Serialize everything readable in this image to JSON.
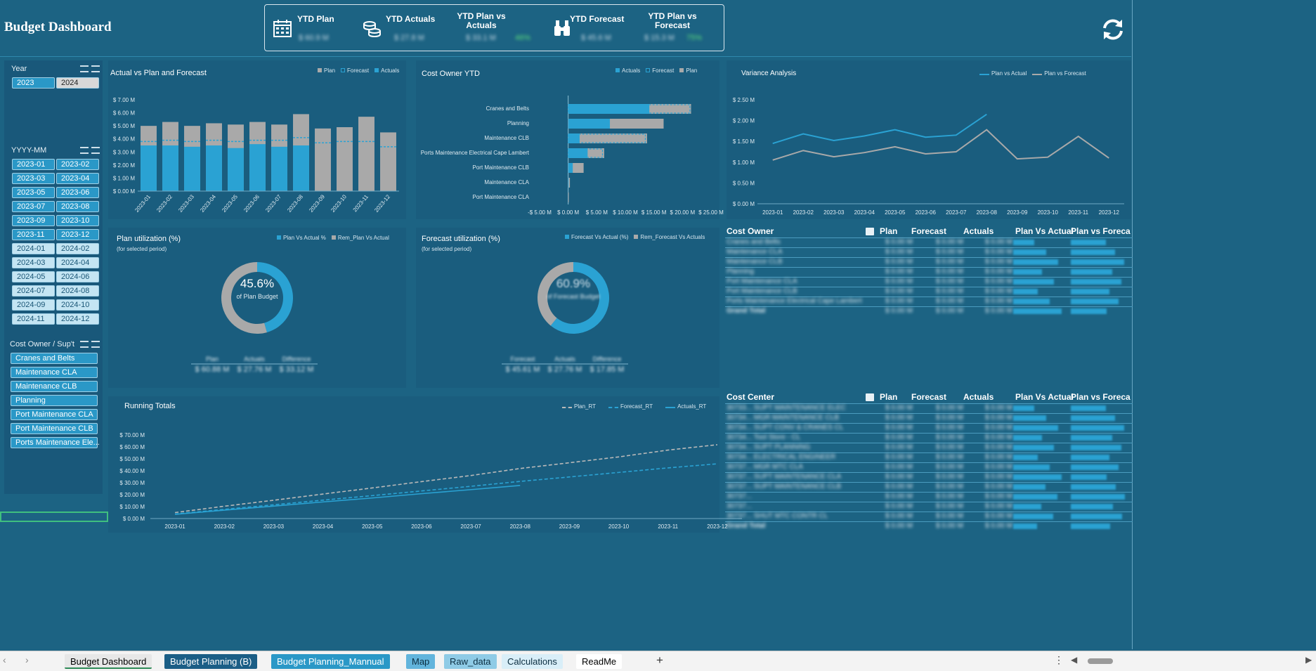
{
  "title": "Budget Dashboard",
  "kpis": [
    {
      "label": "YTD Plan",
      "value": "$ 60.9 M",
      "icon": "calendar-icon"
    },
    {
      "label": "YTD Actuals",
      "value": "$ 27.8 M",
      "icon": "coins-icon"
    },
    {
      "label": "YTD Plan vs Actuals",
      "value": "$ 33.1 M",
      "pct": "46%"
    },
    {
      "label": "YTD Forecast",
      "value": "$ 45.6 M",
      "icon": "binoculars-icon"
    },
    {
      "label": "YTD Plan vs Forecast",
      "value": "$ 15.3 M",
      "pct": "75%"
    }
  ],
  "slicers": {
    "year": {
      "label": "Year",
      "items": [
        "2023",
        "2024"
      ],
      "selected": [
        "2023"
      ]
    },
    "month": {
      "label": "YYYY-MM",
      "items": [
        "2023-01",
        "2023-02",
        "2023-03",
        "2023-04",
        "2023-05",
        "2023-06",
        "2023-07",
        "2023-08",
        "2023-09",
        "2023-10",
        "2023-11",
        "2023-12",
        "2024-01",
        "2024-02",
        "2024-03",
        "2024-04",
        "2024-05",
        "2024-06",
        "2024-07",
        "2024-08",
        "2024-09",
        "2024-10",
        "2024-11",
        "2024-12"
      ]
    },
    "owner": {
      "label": "Cost Owner / Sup't",
      "items": [
        "Cranes and Belts",
        "Maintenance CLA",
        "Maintenance CLB",
        "Planning",
        "Port Maintenance CLA",
        "Port Maintenance CLB",
        "Ports Maintenance Ele..."
      ]
    }
  },
  "chart_data": [
    {
      "type": "bar",
      "title": "Actual vs Plan and Forecast",
      "legend": [
        "Plan",
        "Forecast",
        "Actuals"
      ],
      "categories": [
        "2023-01",
        "2023-02",
        "2023-03",
        "2023-04",
        "2023-05",
        "2023-06",
        "2023-07",
        "2023-08",
        "2023-09",
        "2023-10",
        "2023-11",
        "2023-12"
      ],
      "series": [
        {
          "name": "Plan",
          "values": [
            5.0,
            5.3,
            5.0,
            5.2,
            5.1,
            5.3,
            5.1,
            5.9,
            4.8,
            4.9,
            5.7,
            4.5
          ],
          "color": "#a9a9a9"
        },
        {
          "name": "Actuals",
          "values": [
            3.5,
            3.5,
            3.4,
            3.5,
            3.3,
            3.6,
            3.4,
            3.5,
            0,
            0,
            0,
            0
          ],
          "color": "#2aa2d3"
        },
        {
          "name": "Forecast",
          "values": [
            3.8,
            3.9,
            3.8,
            3.9,
            3.8,
            3.9,
            3.9,
            4.1,
            3.7,
            3.8,
            3.8,
            3.4
          ],
          "color": "#2aa2d3"
        }
      ],
      "yticks": [
        "$ 0.00 M",
        "$ 1.00 M",
        "$ 2.00 M",
        "$ 3.00 M",
        "$ 4.00 M",
        "$ 5.00 M",
        "$ 6.00 M",
        "$ 7.00 M"
      ],
      "ylim": [
        0,
        7
      ]
    },
    {
      "type": "bar",
      "title": "Cost Owner YTD",
      "legend": [
        "Actuals",
        "Forecast",
        "Plan"
      ],
      "categories": [
        "Cranes and Belts",
        "Planning",
        "Maintenance CLB",
        "Ports Maintenance Electrical Cape Lambert",
        "Port Maintenance CLB",
        "Maintenance CLA",
        "Port Maintenance CLA"
      ],
      "series": [
        {
          "name": "Plan",
          "values": [
            21.5,
            16.7,
            13.8,
            6.3,
            2.7,
            0.3,
            0.1
          ]
        },
        {
          "name": "Actuals",
          "values": [
            14.2,
            7.3,
            2.0,
            3.4,
            0.8,
            0.1,
            0.0
          ]
        },
        {
          "name": "Forecast",
          "values": [
            21.3,
            0,
            13.5,
            6.0,
            0,
            0,
            0
          ]
        }
      ],
      "xticks": [
        "-$ 5.00 M",
        "$ 0.00 M",
        "$ 5.00 M",
        "$ 10.00 M",
        "$ 15.00 M",
        "$ 20.00 M",
        "$ 25.00 M"
      ],
      "xlim": [
        -5,
        25
      ]
    },
    {
      "type": "line",
      "title": "Variance Analysis",
      "legend": [
        "Plan vs Actual",
        "Plan vs Forecast"
      ],
      "categories": [
        "2023-01",
        "2023-02",
        "2023-03",
        "2023-04",
        "2023-05",
        "2023-06",
        "2023-07",
        "2023-08",
        "2023-09",
        "2023-10",
        "2023-11",
        "2023-12"
      ],
      "series": [
        {
          "name": "Plan vs Actual",
          "values": [
            1.45,
            1.68,
            1.52,
            1.63,
            1.78,
            1.6,
            1.65,
            2.15,
            null,
            null,
            null,
            null
          ],
          "color": "#2aa2d3"
        },
        {
          "name": "Plan vs Forecast",
          "values": [
            1.05,
            1.28,
            1.13,
            1.23,
            1.37,
            1.2,
            1.25,
            1.78,
            1.08,
            1.12,
            1.62,
            1.1
          ],
          "color": "#a9a9a9"
        }
      ],
      "yticks": [
        "$ 0.00 M",
        "$ 0.50 M",
        "$ 1.00 M",
        "$ 1.50 M",
        "$ 2.00 M",
        "$ 2.50 M"
      ],
      "ylim": [
        0,
        2.5
      ]
    },
    {
      "type": "pie",
      "title": "Plan utilization (%)",
      "subtitle": "(for selected period)",
      "legend": [
        "Plan Vs Actual %",
        "Rem_Plan Vs Actual"
      ],
      "values": [
        45.6,
        54.4
      ],
      "center_value": "45.6%",
      "center_label": "of Plan Budget",
      "footer": [
        {
          "k": "Plan",
          "v": "$ 60.88 M"
        },
        {
          "k": "Actuals",
          "v": "$ 27.76 M"
        },
        {
          "k": "Difference",
          "v": "$ 33.12 M"
        }
      ]
    },
    {
      "type": "pie",
      "title": "Forecast utilization (%)",
      "subtitle": "(for selected period)",
      "legend": [
        "Forecast Vs Actual (%)",
        "Rem_Forecast Vs Actuals"
      ],
      "values": [
        60.9,
        39.1
      ],
      "center_value": "60.9%",
      "center_label": "of Forecast Budget",
      "footer": [
        {
          "k": "Forecast",
          "v": "$ 45.61 M"
        },
        {
          "k": "Actuals",
          "v": "$ 27.76 M"
        },
        {
          "k": "Difference",
          "v": "$ 17.85 M"
        }
      ]
    },
    {
      "type": "line",
      "title": "Running Totals",
      "legend": [
        "Plan_RT",
        "Forecast_RT",
        "Actuals_RT"
      ],
      "categories": [
        "2023-01",
        "2023-02",
        "2023-03",
        "2023-04",
        "2023-05",
        "2023-06",
        "2023-07",
        "2023-08",
        "2023-09",
        "2023-10",
        "2023-11",
        "2023-12"
      ],
      "series": [
        {
          "name": "Plan_RT",
          "values": [
            5.0,
            10.3,
            15.3,
            20.5,
            25.6,
            30.9,
            36.0,
            41.9,
            46.7,
            51.6,
            57.3,
            61.8
          ],
          "color": "#b9b9b9"
        },
        {
          "name": "Forecast_RT",
          "values": [
            3.8,
            7.7,
            11.5,
            15.4,
            19.2,
            23.1,
            27.0,
            31.1,
            34.8,
            38.6,
            42.4,
            45.8
          ],
          "color": "#2aa2d3"
        },
        {
          "name": "Actuals_RT",
          "values": [
            3.5,
            7.0,
            10.4,
            13.9,
            17.2,
            20.8,
            24.2,
            27.7,
            null,
            null,
            null,
            null
          ],
          "color": "#2aa2d3"
        }
      ],
      "yticks": [
        "$ 0.00 M",
        "$ 10.00 M",
        "$ 20.00 M",
        "$ 30.00 M",
        "$ 40.00 M",
        "$ 50.00 M",
        "$ 60.00 M",
        "$ 70.00 M"
      ],
      "ylim": [
        0,
        70
      ]
    }
  ],
  "table1": {
    "headers": [
      "Cost Owner",
      "Plan",
      "Forecast",
      "Actuals",
      "Plan Vs Actual",
      "Plan vs Foreca"
    ],
    "rows": [
      "Cranes and Belts",
      "Maintenance CLA",
      "Maintenance CLB",
      "Planning",
      "Port Maintenance CLA",
      "Port Maintenance CLB",
      "Ports Maintenance Electrical Cape Lambert",
      "Grand Total"
    ]
  },
  "table2": {
    "headers": [
      "Cost Center",
      "Plan",
      "Forecast",
      "Actuals",
      "Plan Vs Actual",
      "Plan vs Foreca"
    ],
    "rows": [
      "30733... SUPT MAINTENANCE ELEC",
      "30734... MGR MAINTENANCE CLB",
      "30734... SUPT CONV & CRANES CL",
      "30734... Tool Store - CL",
      "30734... SUPT PLANNING",
      "30734... ELECTRICAL ENGINEER",
      "30737... MGR MTC CLA",
      "30737... SUPT MAINTENANCE CLA",
      "30737... SUPT MAINTENANCE CLB",
      "30737...",
      "30737...",
      "30737... SHUT MTC CONTR CL",
      "Grand Total"
    ]
  },
  "tabs": [
    "Budget Dashboard",
    "Budget Planning (B)",
    "Budget Planning_Mannual",
    "Map",
    "Raw_data",
    "Calculations",
    "ReadMe"
  ]
}
